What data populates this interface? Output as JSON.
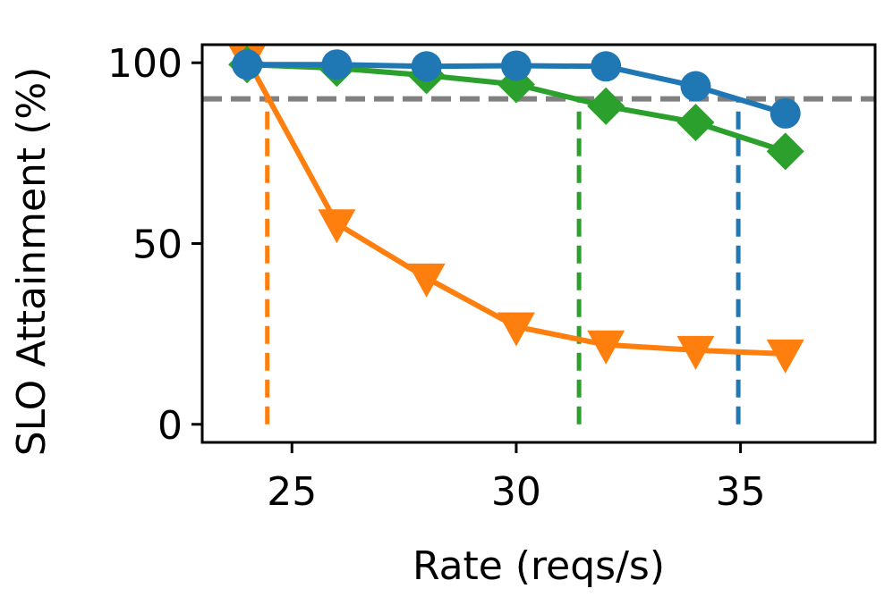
{
  "chart_data": {
    "type": "line",
    "xlabel": "Rate (reqs/s)",
    "ylabel": "SLO Attainment (%)",
    "xlim": [
      23,
      38
    ],
    "ylim": [
      -5,
      105
    ],
    "xticks": [
      25,
      30,
      35
    ],
    "yticks": [
      0,
      50,
      100
    ],
    "x": [
      24,
      26,
      28,
      30,
      32,
      34,
      36
    ],
    "series": [
      {
        "name": "blue-circle-series",
        "color": "#1f77b4",
        "marker": "circle",
        "values": [
          99.5,
          99.5,
          99,
          99.2,
          99,
          93.5,
          86
        ]
      },
      {
        "name": "green-diamond-series",
        "color": "#2ca02c",
        "marker": "diamond",
        "values": [
          99.5,
          98.5,
          96.5,
          94,
          88,
          83.5,
          75.5
        ]
      },
      {
        "name": "orange-triangle-series",
        "color": "#ff7f0e",
        "marker": "triangle-down",
        "values": [
          101,
          55.5,
          40.5,
          27,
          22,
          20.5,
          19.5
        ]
      }
    ],
    "slo_target": {
      "y": 90,
      "color": "#808080",
      "style": "dashed"
    },
    "capacity_lines": [
      {
        "series": "orange-triangle-series",
        "x": 24.45,
        "color": "#ff7f0e"
      },
      {
        "series": "green-diamond-series",
        "x": 31.4,
        "color": "#2ca02c"
      },
      {
        "series": "blue-circle-series",
        "x": 34.95,
        "color": "#1f77b4"
      }
    ],
    "grid": false,
    "legend": "none"
  }
}
